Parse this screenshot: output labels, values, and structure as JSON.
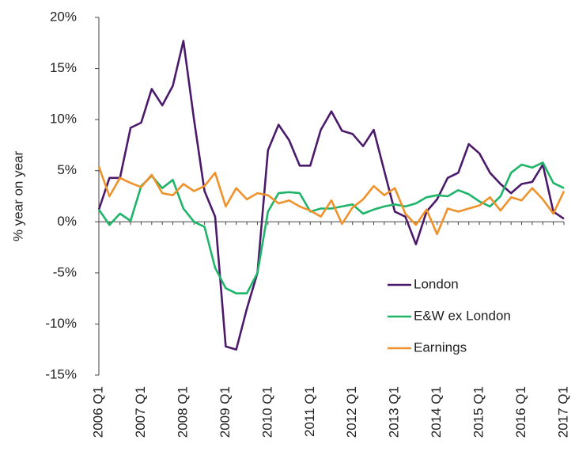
{
  "chart_data": {
    "type": "line",
    "y_label": "% year on year",
    "categories": [
      "2006 Q1",
      null,
      null,
      null,
      "2007 Q1",
      null,
      null,
      null,
      "2008 Q1",
      null,
      null,
      null,
      "2009 Q1",
      null,
      null,
      null,
      "2010 Q1",
      null,
      null,
      null,
      "2011 Q1",
      null,
      null,
      null,
      "2012 Q1",
      null,
      null,
      null,
      "2013 Q1",
      null,
      null,
      null,
      "2014 Q1",
      null,
      null,
      null,
      "2015 Q1",
      null,
      null,
      null,
      "2016 Q1",
      null,
      null,
      null,
      "2017 Q1"
    ],
    "series": [
      {
        "name": "London",
        "color": "#4b1a6b",
        "values": [
          1.2,
          4.3,
          4.3,
          9.2,
          9.7,
          13,
          11.4,
          13.3,
          17.7,
          10,
          3,
          0.5,
          -12.2,
          -12.5,
          -8.5,
          -5,
          7,
          9.5,
          8,
          5.5,
          5.5,
          9,
          10.8,
          8.9,
          8.6,
          7.4,
          9,
          5,
          1,
          0.5,
          -2.2,
          1,
          2.2,
          4.3,
          4.8,
          7.6,
          6.7,
          4.8,
          3.7,
          2.8,
          3.7,
          3.9,
          5.6,
          1,
          0.3
        ]
      },
      {
        "name": "E&W ex London",
        "color": "#1fb46a",
        "values": [
          1.2,
          -0.3,
          0.8,
          0.1,
          3.5,
          4.5,
          3.3,
          4.1,
          1.3,
          0,
          -0.5,
          -4.5,
          -6.5,
          -7,
          -7,
          -5,
          1,
          2.8,
          2.9,
          2.8,
          1,
          1.3,
          1.3,
          1.5,
          1.7,
          0.8,
          1.2,
          1.5,
          1.7,
          1.5,
          1.8,
          2.4,
          2.6,
          2.5,
          3.1,
          2.7,
          2,
          1.5,
          2.5,
          4.8,
          5.6,
          5.3,
          5.8,
          3.8,
          3.3
        ]
      },
      {
        "name": "Earnings",
        "color": "#f0922b",
        "values": [
          5.4,
          2.5,
          4.3,
          3.8,
          3.4,
          4.6,
          2.8,
          2.6,
          3.7,
          3,
          3.5,
          4.8,
          1.5,
          3.3,
          2.2,
          2.8,
          2.6,
          1.8,
          2.1,
          1.5,
          1.1,
          0.5,
          2.1,
          -0.2,
          1.4,
          2.2,
          3.5,
          2.6,
          3.3,
          0.8,
          -0.3,
          1.2,
          -1.2,
          1.3,
          1,
          1.3,
          1.6,
          2.4,
          1.1,
          2.4,
          2.1,
          3.3,
          2.2,
          0.8,
          3
        ]
      }
    ],
    "ylim": [
      -15,
      20
    ],
    "yticks": [
      {
        "value": -15,
        "label": "-15%"
      },
      {
        "value": -10,
        "label": "-10%"
      },
      {
        "value": -5,
        "label": "-5%"
      },
      {
        "value": 0,
        "label": "0%"
      },
      {
        "value": 5,
        "label": "5%"
      },
      {
        "value": 10,
        "label": "10%"
      },
      {
        "value": 15,
        "label": "15%"
      },
      {
        "value": 20,
        "label": "20%"
      }
    ],
    "grid": false,
    "legend": "lower right"
  }
}
